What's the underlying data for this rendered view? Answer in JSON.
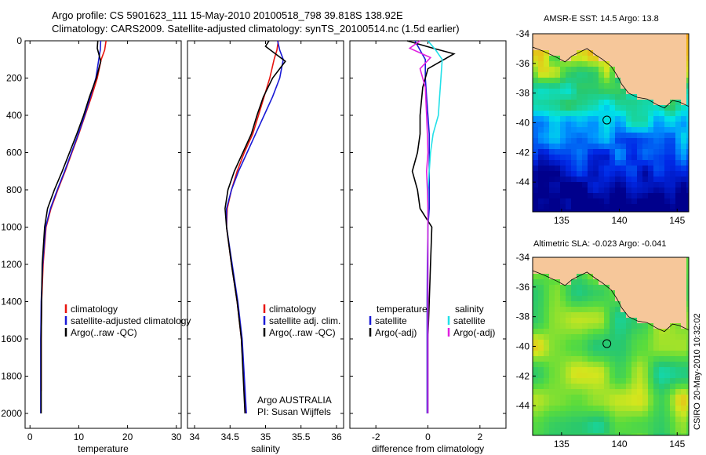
{
  "header": {
    "line1": "Argo profile: CS 5901623_111 15-May-2010 20100518_798 39.818S 138.92E",
    "line2": "Climatology: CARS2009. Satellite-adjusted climatology: synTS_20100514.nc (1.5d earlier)"
  },
  "credit": "CSIRO 20-May-2010 10:32:02",
  "colors": {
    "red": "#e8150f",
    "blue": "#1a1ad6",
    "black": "#000000",
    "cyan": "#22e0e8",
    "magenta": "#e020e0",
    "land": "#f6c79a",
    "coast": "#000000"
  },
  "chart_data": [
    {
      "type": "line",
      "xlabel": "temperature",
      "ylabel": "",
      "xlim": [
        -1,
        31
      ],
      "ylim": [
        0,
        2080
      ],
      "y_reversed": true,
      "xticks": [
        0,
        10,
        20,
        30
      ],
      "yticks": [
        0,
        200,
        400,
        600,
        800,
        1000,
        1200,
        1400,
        1600,
        1800,
        2000
      ],
      "legend": {
        "placement": "lower-right",
        "entries": [
          "climatology",
          "satellite-adjusted climatology",
          "Argo(..raw -QC)"
        ]
      },
      "annotations": [],
      "series": [
        {
          "name": "climatology",
          "color": "red",
          "x": [
            15.6,
            15.3,
            14.6,
            13.8,
            12.6,
            11.3,
            10.0,
            8.6,
            7.2,
            5.7,
            4.3,
            3.3,
            2.7,
            2.4,
            2.3,
            2.3
          ],
          "y": [
            0,
            50,
            100,
            200,
            300,
            400,
            500,
            600,
            700,
            800,
            900,
            1000,
            1200,
            1400,
            1600,
            1880
          ]
        },
        {
          "name": "satellite-adjusted climatology",
          "color": "blue",
          "x": [
            14.5,
            14.4,
            14.1,
            13.5,
            12.4,
            11.2,
            9.9,
            8.5,
            7.1,
            5.6,
            4.2,
            3.2,
            2.6,
            2.3,
            2.2,
            2.2
          ],
          "y": [
            0,
            50,
            100,
            200,
            300,
            400,
            500,
            600,
            700,
            800,
            900,
            1000,
            1200,
            1400,
            1600,
            2000
          ]
        },
        {
          "name": "Argo(..raw -QC)",
          "color": "black",
          "x": [
            13.9,
            13.8,
            14.5,
            13.6,
            12.2,
            11.0,
            9.6,
            8.1,
            6.6,
            5.0,
            3.6,
            3.0,
            2.5,
            2.4,
            2.3,
            2.3
          ],
          "y": [
            0,
            40,
            110,
            200,
            300,
            400,
            500,
            600,
            700,
            800,
            900,
            1000,
            1200,
            1400,
            1600,
            2000
          ]
        }
      ]
    },
    {
      "type": "line",
      "xlabel": "salinity",
      "ylabel": "",
      "xlim": [
        33.9,
        36.1
      ],
      "ylim": [
        0,
        2080
      ],
      "y_reversed": true,
      "xticks": [
        34,
        34.5,
        35,
        35.5,
        36
      ],
      "yticks": [],
      "legend": {
        "placement": "lower-right",
        "entries": [
          "climatology",
          "satellite adj. clim.",
          "Argo(..raw -QC)"
        ]
      },
      "annotations": [
        "Argo AUSTRALIA",
        "PI: Susan Wijffels"
      ],
      "series": [
        {
          "name": "climatology",
          "color": "red",
          "x": [
            35.18,
            35.16,
            35.12,
            35.06,
            34.98,
            34.9,
            34.82,
            34.7,
            34.6,
            34.52,
            34.46,
            34.45,
            34.52,
            34.6,
            34.66,
            34.72
          ],
          "y": [
            0,
            50,
            100,
            200,
            300,
            400,
            500,
            600,
            700,
            800,
            900,
            1000,
            1200,
            1400,
            1600,
            2000
          ]
        },
        {
          "name": "satellite adj. clim.",
          "color": "blue",
          "x": [
            35.17,
            35.2,
            35.25,
            35.2,
            35.1,
            34.98,
            34.86,
            34.74,
            34.62,
            34.52,
            34.45,
            34.45,
            34.53,
            34.61,
            34.67,
            34.73
          ],
          "y": [
            0,
            50,
            100,
            200,
            300,
            400,
            500,
            600,
            700,
            800,
            900,
            1000,
            1200,
            1400,
            1600,
            2000
          ]
        },
        {
          "name": "Argo(..raw -QC)",
          "color": "black",
          "x": [
            35.05,
            35.0,
            35.28,
            35.1,
            34.97,
            34.88,
            34.8,
            34.68,
            34.56,
            34.47,
            34.43,
            34.45,
            34.52,
            34.6,
            34.66,
            34.71
          ],
          "y": [
            0,
            30,
            110,
            200,
            300,
            400,
            500,
            600,
            700,
            800,
            900,
            1000,
            1200,
            1400,
            1600,
            2000
          ]
        }
      ]
    },
    {
      "type": "line",
      "xlabel": "difference from climatology",
      "ylabel": "",
      "xlim": [
        -3,
        3
      ],
      "ylim": [
        0,
        2080
      ],
      "y_reversed": true,
      "xticks": [
        -2,
        0,
        2
      ],
      "yticks": [],
      "legend": {
        "placement": "lower-right",
        "entries": [
          "temperature",
          "satellite",
          "Argo(-adj)",
          "salinity",
          "satellite",
          "Argo(-adj)"
        ]
      },
      "annotations": [],
      "series": [
        {
          "name": "satellite",
          "group": "temperature",
          "color": "blue",
          "x": [
            -0.5,
            -0.3,
            -0.1,
            -0.1,
            -0.05,
            0.0,
            0.05,
            0.05,
            0.05,
            0.05,
            0.05,
            0.0,
            -0.02,
            -0.03,
            -0.03,
            -0.03
          ],
          "y": [
            0,
            50,
            100,
            200,
            300,
            400,
            500,
            600,
            700,
            800,
            900,
            1000,
            1200,
            1400,
            1600,
            2000
          ]
        },
        {
          "name": "Argo(-adj)",
          "group": "temperature",
          "color": "black",
          "x": [
            -0.8,
            0.2,
            1.0,
            0.0,
            -0.2,
            -0.3,
            -0.3,
            -0.4,
            -0.6,
            -0.4,
            -0.3,
            0.15,
            0.1,
            0.05,
            0.0,
            0.0
          ],
          "y": [
            0,
            40,
            70,
            150,
            250,
            400,
            500,
            600,
            700,
            800,
            900,
            1000,
            1200,
            1400,
            1600,
            2000
          ]
        },
        {
          "name": "satellite",
          "group": "salinity",
          "color": "cyan",
          "x": [
            0.0,
            0.3,
            0.55,
            0.5,
            0.45,
            0.4,
            0.2,
            0.1,
            0.05,
            0.0,
            0.0,
            0.0,
            0.0,
            0.0,
            0.0,
            0.0
          ],
          "y": [
            0,
            50,
            100,
            200,
            300,
            400,
            500,
            600,
            700,
            800,
            900,
            1000,
            1200,
            1400,
            1600,
            2000
          ]
        },
        {
          "name": "Argo(-adj)",
          "group": "salinity",
          "color": "magenta",
          "x": [
            -0.3,
            -0.7,
            0.1,
            -0.3,
            -0.1,
            -0.05,
            -0.02,
            0.0,
            -0.05,
            -0.02,
            0.0,
            0.0,
            0.0,
            0.0,
            0.0,
            0.0
          ],
          "y": [
            0,
            40,
            90,
            150,
            250,
            400,
            500,
            600,
            700,
            800,
            900,
            1000,
            1200,
            1400,
            1600,
            2000
          ]
        }
      ]
    },
    {
      "type": "heatmap",
      "title": "AMSR-E SST: 14.5 Argo: 13.8",
      "xlim": [
        132.5,
        146
      ],
      "ylim": [
        -46,
        -34
      ],
      "xticks": [
        135,
        140,
        145
      ],
      "yticks": [
        -34,
        -36,
        -38,
        -40,
        -42,
        -44
      ],
      "marker": {
        "lon": 138.92,
        "lat": -39.818
      },
      "field": "sst"
    },
    {
      "type": "heatmap",
      "title": "Altimetric SLA: -0.023 Argo: -0.041",
      "xlim": [
        132.5,
        146
      ],
      "ylim": [
        -46,
        -34
      ],
      "xticks": [
        135,
        140,
        145
      ],
      "yticks": [
        -34,
        -36,
        -38,
        -40,
        -42,
        -44
      ],
      "marker": {
        "lon": 138.92,
        "lat": -39.818
      },
      "field": "sla"
    }
  ]
}
